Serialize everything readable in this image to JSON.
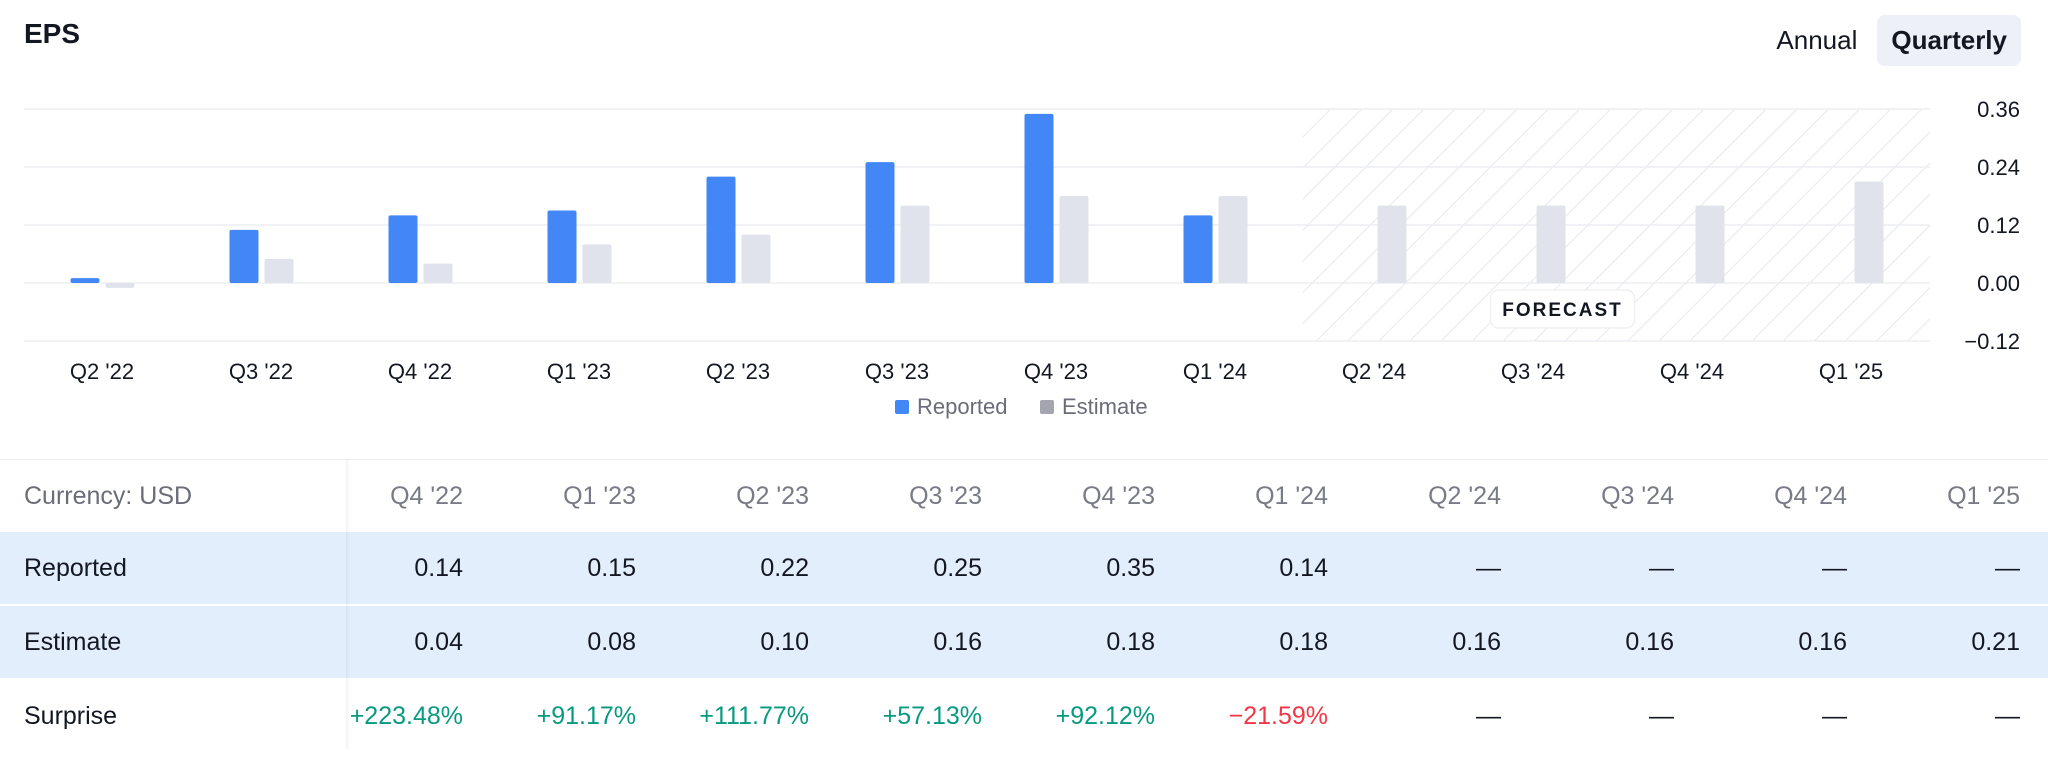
{
  "header": {
    "title": "EPS"
  },
  "period_toggle": {
    "options": [
      "Annual",
      "Quarterly"
    ],
    "selected": "Quarterly"
  },
  "chart_data": {
    "type": "bar",
    "categories": [
      "Q2 '22",
      "Q3 '22",
      "Q4 '22",
      "Q1 '23",
      "Q2 '23",
      "Q3 '23",
      "Q4 '23",
      "Q1 '24",
      "Q2 '24",
      "Q3 '24",
      "Q4 '24",
      "Q1 '25"
    ],
    "series": [
      {
        "name": "Reported",
        "color": "#4287f5",
        "values": [
          0.01,
          0.11,
          0.14,
          0.15,
          0.22,
          0.25,
          0.35,
          0.14,
          null,
          null,
          null,
          null
        ]
      },
      {
        "name": "Estimate",
        "color": "#e0e3eb",
        "values": [
          -0.01,
          0.05,
          0.04,
          0.08,
          0.1,
          0.16,
          0.18,
          0.18,
          0.16,
          0.16,
          0.16,
          0.21
        ]
      }
    ],
    "y_ticks": [
      "0.36",
      "0.24",
      "0.12",
      "0.00",
      "−0.12"
    ],
    "ylim": [
      -0.12,
      0.36
    ],
    "forecast_label": "FORECAST",
    "forecast_start_index": 8,
    "legend_position": "bottom-center",
    "grid": true
  },
  "table": {
    "currency_label": "Currency: USD",
    "columns": [
      "Q4 '22",
      "Q1 '23",
      "Q2 '23",
      "Q3 '23",
      "Q4 '23",
      "Q1 '24",
      "Q2 '24",
      "Q3 '24",
      "Q4 '24",
      "Q1 '25"
    ],
    "rows": [
      {
        "label": "Reported",
        "values": [
          "0.14",
          "0.15",
          "0.22",
          "0.25",
          "0.35",
          "0.14",
          "—",
          "—",
          "—",
          "—"
        ]
      },
      {
        "label": "Estimate",
        "values": [
          "0.04",
          "0.08",
          "0.10",
          "0.16",
          "0.18",
          "0.18",
          "0.16",
          "0.16",
          "0.16",
          "0.21"
        ]
      },
      {
        "label": "Surprise",
        "values": [
          "+223.48%",
          "+91.17%",
          "+111.77%",
          "+57.13%",
          "+92.12%",
          "−21.59%",
          "—",
          "—",
          "—",
          "—"
        ]
      }
    ]
  }
}
